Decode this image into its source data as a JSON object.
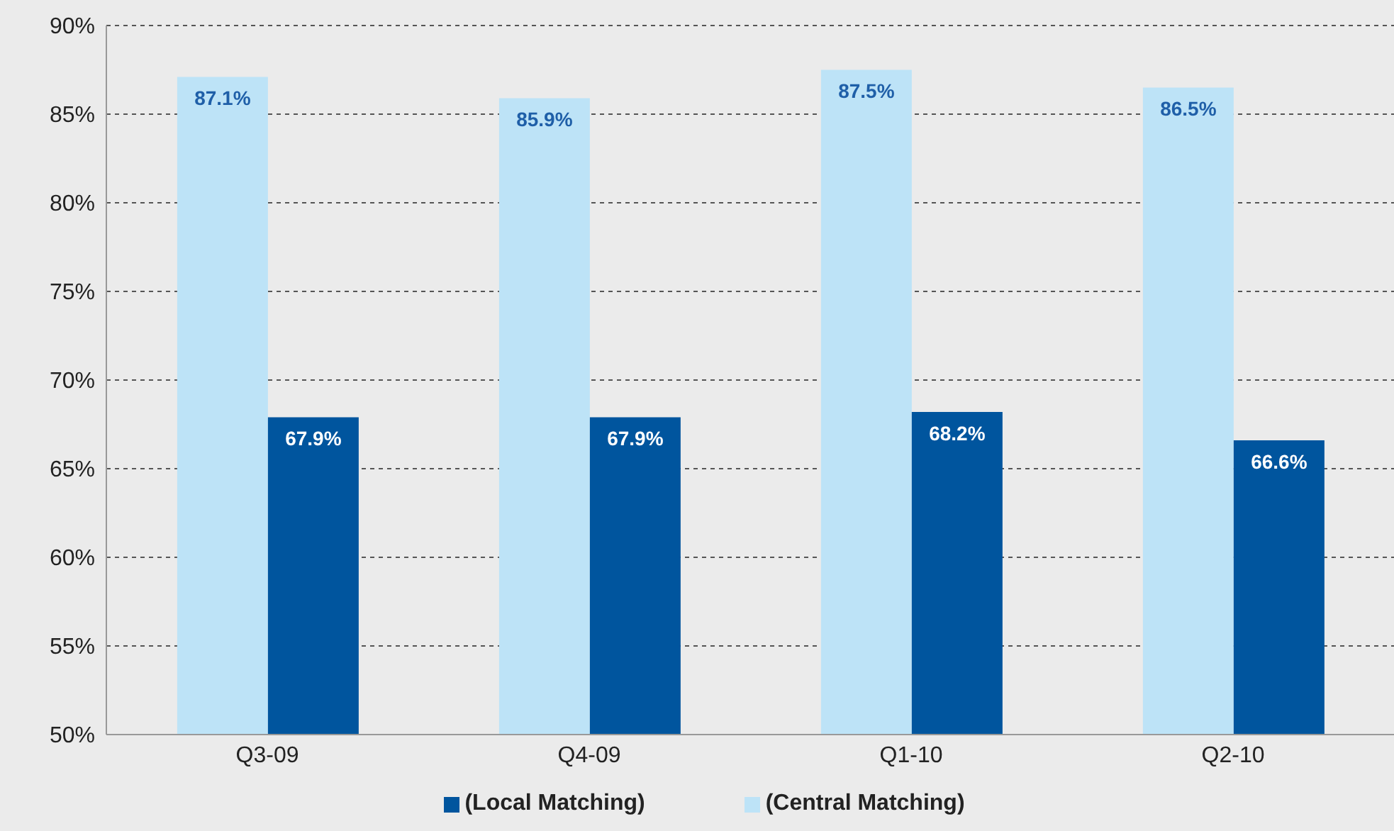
{
  "chart_data": {
    "type": "bar",
    "categories": [
      "Q3-09",
      "Q4-09",
      "Q1-10",
      "Q2-10"
    ],
    "series": [
      {
        "name": "(Central Matching)",
        "color": "#bde3f7",
        "values": [
          87.1,
          85.9,
          87.5,
          86.5
        ],
        "value_labels": [
          "87.1%",
          "85.9%",
          "87.5%",
          "86.5%"
        ]
      },
      {
        "name": "(Local Matching)",
        "color": "#00559e",
        "values": [
          67.9,
          67.9,
          68.2,
          66.6
        ],
        "value_labels": [
          "67.9%",
          "67.9%",
          "68.2%",
          "66.6%"
        ]
      }
    ],
    "ylim": [
      50,
      90
    ],
    "yticks": [
      {
        "value": 50,
        "label": "50%"
      },
      {
        "value": 55,
        "label": "55%"
      },
      {
        "value": 60,
        "label": "60%"
      },
      {
        "value": 65,
        "label": "65%"
      },
      {
        "value": 70,
        "label": "70%"
      },
      {
        "value": 75,
        "label": "75%"
      },
      {
        "value": 80,
        "label": "80%"
      },
      {
        "value": 85,
        "label": "85%"
      },
      {
        "value": 90,
        "label": "90%"
      }
    ],
    "grid": "y",
    "legend": "bottom"
  }
}
